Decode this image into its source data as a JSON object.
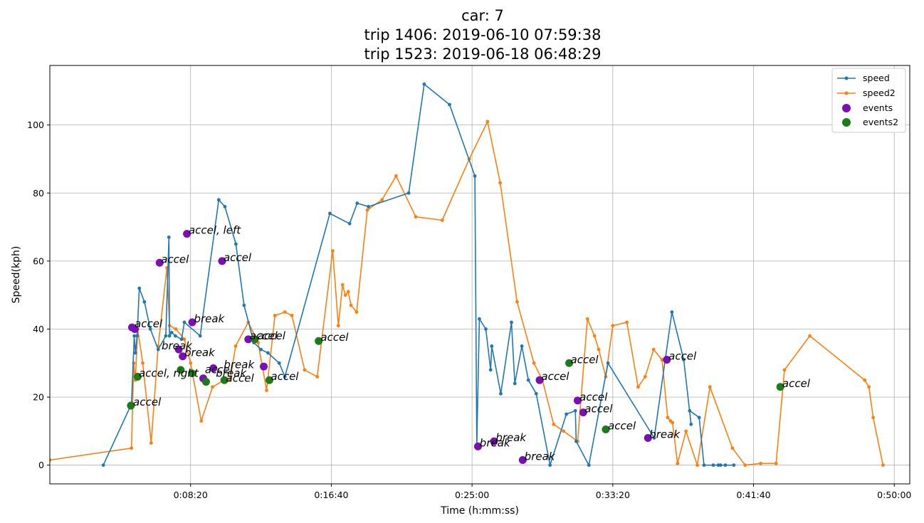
{
  "chart_data": {
    "type": "line",
    "title_lines": [
      "car: 7",
      "trip 1406: 2019-06-10 07:59:38",
      "trip 1523: 2019-06-18 06:48:29"
    ],
    "xlabel": "Time (h:mm:ss)",
    "ylabel": "Speed(kph)",
    "xlim": [
      0,
      3055
    ],
    "ylim": [
      -5.5,
      117.5
    ],
    "x_ticks": [
      500,
      1000,
      1500,
      2000,
      2500,
      3000
    ],
    "x_tick_labels": [
      "0:08:20",
      "0:16:40",
      "0:25:00",
      "0:33:20",
      "0:41:40",
      "0:50:00"
    ],
    "y_ticks": [
      0,
      20,
      40,
      60,
      80,
      100
    ],
    "y_tick_labels": [
      "0",
      "20",
      "40",
      "60",
      "80",
      "100"
    ],
    "grid": true,
    "legend_position": "top-right",
    "colors": {
      "speed": "#1f77b4",
      "speed2": "#ff7f0e",
      "events": "#7b0eb4",
      "events2": "#1a7d1a"
    },
    "series": [
      {
        "name": "speed",
        "x": [
          190,
          290,
          300,
          304,
          310,
          318,
          336,
          357,
          385,
          412,
          423,
          425,
          433,
          446,
          468,
          478,
          534,
          600,
          622,
          661,
          690,
          725,
          750,
          775,
          815,
          835,
          995,
          1065,
          1092,
          1132,
          1275,
          1330,
          1420,
          1510,
          1517,
          1526,
          1549,
          1566,
          1570,
          1602,
          1640,
          1652,
          1677,
          1700,
          1728,
          1777,
          1835,
          1867,
          1870,
          1915,
          1983,
          2147,
          2210,
          2252,
          2278,
          2273,
          2307,
          2324,
          2357,
          2375,
          2383,
          2400,
          2430
        ],
        "y": [
          0,
          18,
          38,
          33,
          38,
          52,
          48,
          40,
          34,
          38,
          67,
          38,
          39,
          38,
          37,
          42,
          38,
          78,
          76,
          65,
          47,
          36,
          34,
          33,
          30,
          26,
          74,
          71,
          77,
          76,
          80,
          112,
          106,
          85,
          6,
          43,
          40,
          28,
          35,
          21,
          42,
          24,
          35,
          25,
          21,
          0,
          15,
          16,
          7,
          0,
          30,
          8,
          45,
          31,
          12,
          16,
          14,
          0,
          0,
          0,
          0,
          0,
          0
        ]
      },
      {
        "name": "speed2",
        "x": [
          0,
          290,
          298,
          304,
          312,
          330,
          360,
          385,
          416,
          425,
          448,
          478,
          500,
          538,
          578,
          620,
          640,
          660,
          705,
          740,
          770,
          800,
          835,
          860,
          905,
          950,
          1005,
          1025,
          1040,
          1050,
          1060,
          1070,
          1090,
          1128,
          1180,
          1230,
          1300,
          1394,
          1490,
          1555,
          1600,
          1660,
          1720,
          1750,
          1790,
          1825,
          1875,
          1910,
          1935,
          1950,
          1975,
          2000,
          2050,
          2090,
          2115,
          2145,
          2175,
          2195,
          2205,
          2212,
          2230,
          2260,
          2300,
          2345,
          2425,
          2470,
          2525,
          2580,
          2610,
          2700,
          2895,
          2910,
          2925,
          2960
        ],
        "y": [
          1.5,
          5,
          30,
          25,
          40,
          30,
          6.5,
          35,
          58,
          41,
          40,
          37,
          30,
          13,
          23,
          25,
          25,
          35,
          42,
          36,
          22,
          44,
          45,
          44,
          28,
          26,
          63,
          41,
          53,
          50,
          51,
          47,
          45,
          75,
          78,
          85,
          73,
          72,
          90,
          101,
          83,
          48,
          30,
          25,
          12,
          10,
          7,
          43,
          38,
          34,
          26,
          41,
          42,
          23,
          26,
          34,
          31,
          14,
          13,
          12.5,
          0.5,
          10,
          0,
          23,
          5,
          0,
          0.5,
          0.5,
          28,
          38,
          25,
          23,
          14,
          0
        ]
      },
      {
        "name": "events",
        "x": [
          292,
          302,
          390,
          487,
          458,
          472,
          506,
          545,
          581,
          612,
          705,
          760,
          1521,
          1578,
          1680,
          1740,
          1875,
          1895,
          2125,
          2192
        ],
        "y": [
          40.5,
          40,
          59.5,
          68,
          34,
          32,
          42,
          25.5,
          28.5,
          60,
          37,
          29,
          5.5,
          7,
          1.5,
          25,
          19,
          15.5,
          8,
          31
        ]
      },
      {
        "name": "events2",
        "x": [
          288,
          312,
          465,
          505,
          555,
          620,
          728,
          780,
          955,
          1845,
          1975,
          2595
        ],
        "y": [
          17.5,
          26,
          28,
          27,
          24.5,
          25,
          37,
          25,
          36.5,
          30,
          10.5,
          23
        ]
      }
    ],
    "annotations": [
      {
        "text": "accel",
        "x": 301,
        "y": 40.5
      },
      {
        "text": "accel",
        "x": 395,
        "y": 59.5
      },
      {
        "text": "accel, left",
        "x": 493,
        "y": 68
      },
      {
        "text": "accel",
        "x": 617,
        "y": 60
      },
      {
        "text": "break",
        "x": 512,
        "y": 42
      },
      {
        "text": "break",
        "x": 397,
        "y": 34
      },
      {
        "text": "break",
        "x": 478,
        "y": 32
      },
      {
        "text": "accel, right",
        "x": 316,
        "y": 26
      },
      {
        "text": "accel",
        "x": 296,
        "y": 17.5
      },
      {
        "text": "accel",
        "x": 551,
        "y": 27
      },
      {
        "text": "break",
        "x": 590,
        "y": 26
      },
      {
        "text": "break",
        "x": 618,
        "y": 28.5
      },
      {
        "text": "accel",
        "x": 626,
        "y": 24.5
      },
      {
        "text": "accel",
        "x": 710,
        "y": 37
      },
      {
        "text": "accel",
        "x": 738,
        "y": 37
      },
      {
        "text": "accel",
        "x": 785,
        "y": 25
      },
      {
        "text": "accel",
        "x": 962,
        "y": 36.5
      },
      {
        "text": "break",
        "x": 1527,
        "y": 5.5
      },
      {
        "text": "break",
        "x": 1584,
        "y": 7
      },
      {
        "text": "break",
        "x": 1686,
        "y": 1.5
      },
      {
        "text": "accel",
        "x": 1746,
        "y": 25
      },
      {
        "text": "accel",
        "x": 1850,
        "y": 30
      },
      {
        "text": "accel",
        "x": 1882,
        "y": 19
      },
      {
        "text": "accel",
        "x": 1900,
        "y": 15.5
      },
      {
        "text": "accel",
        "x": 1983,
        "y": 10.5
      },
      {
        "text": "break",
        "x": 2130,
        "y": 8
      },
      {
        "text": "accel",
        "x": 2198,
        "y": 31
      },
      {
        "text": "accel",
        "x": 2602,
        "y": 23
      }
    ]
  }
}
